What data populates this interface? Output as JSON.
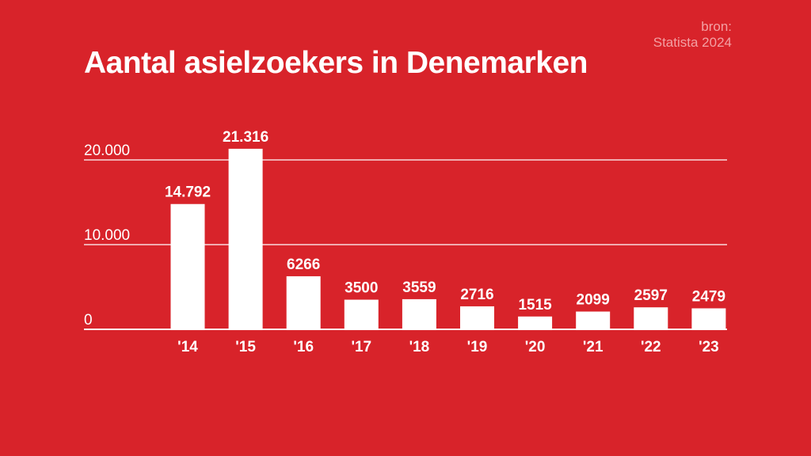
{
  "source": {
    "line1": "bron:",
    "line2": "Statista 2024"
  },
  "colors": {
    "background": "#d8232a",
    "bars": "#ffffff",
    "source_text": "#f3a0a3"
  },
  "chart_data": {
    "type": "bar",
    "title": "Aantal asielzoekers in Denemarken",
    "categories": [
      "'14",
      "'15",
      "'16",
      "'17",
      "'18",
      "'19",
      "'20",
      "'21",
      "'22",
      "'23"
    ],
    "values": [
      14792,
      21316,
      6266,
      3500,
      3559,
      2716,
      1515,
      2099,
      2597,
      2479
    ],
    "data_labels": [
      "14.792",
      "21.316",
      "6266",
      "3500",
      "3559",
      "2716",
      "1515",
      "2099",
      "2597",
      "2479"
    ],
    "yticks": [
      0,
      10000,
      20000
    ],
    "ytick_labels": [
      "0",
      "10.000",
      "20.000"
    ],
    "ylim": [
      0,
      20000
    ],
    "grid": true,
    "xlabel": "",
    "ylabel": ""
  }
}
